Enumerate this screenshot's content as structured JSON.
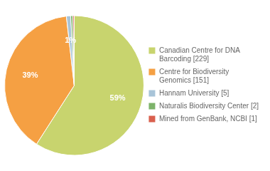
{
  "chart_data": {
    "type": "pie",
    "categories": [
      "Canadian Centre for DNA\nBarcoding [229]",
      "Centre for Biodiversity\nGenomics [151]",
      "Hannam University [5]",
      "Naturalis Biodiversity Center [2]",
      "Mined from GenBank, NCBI [1]"
    ],
    "values": [
      59,
      39,
      1,
      0.5,
      0.3
    ],
    "value_labels": [
      "59%",
      "39%",
      "1%",
      null,
      null
    ],
    "colors": [
      "#c8d46e",
      "#f5a043",
      "#a8c4d8",
      "#7db36a",
      "#d9604e"
    ],
    "data_labels": true,
    "legend": "right"
  }
}
